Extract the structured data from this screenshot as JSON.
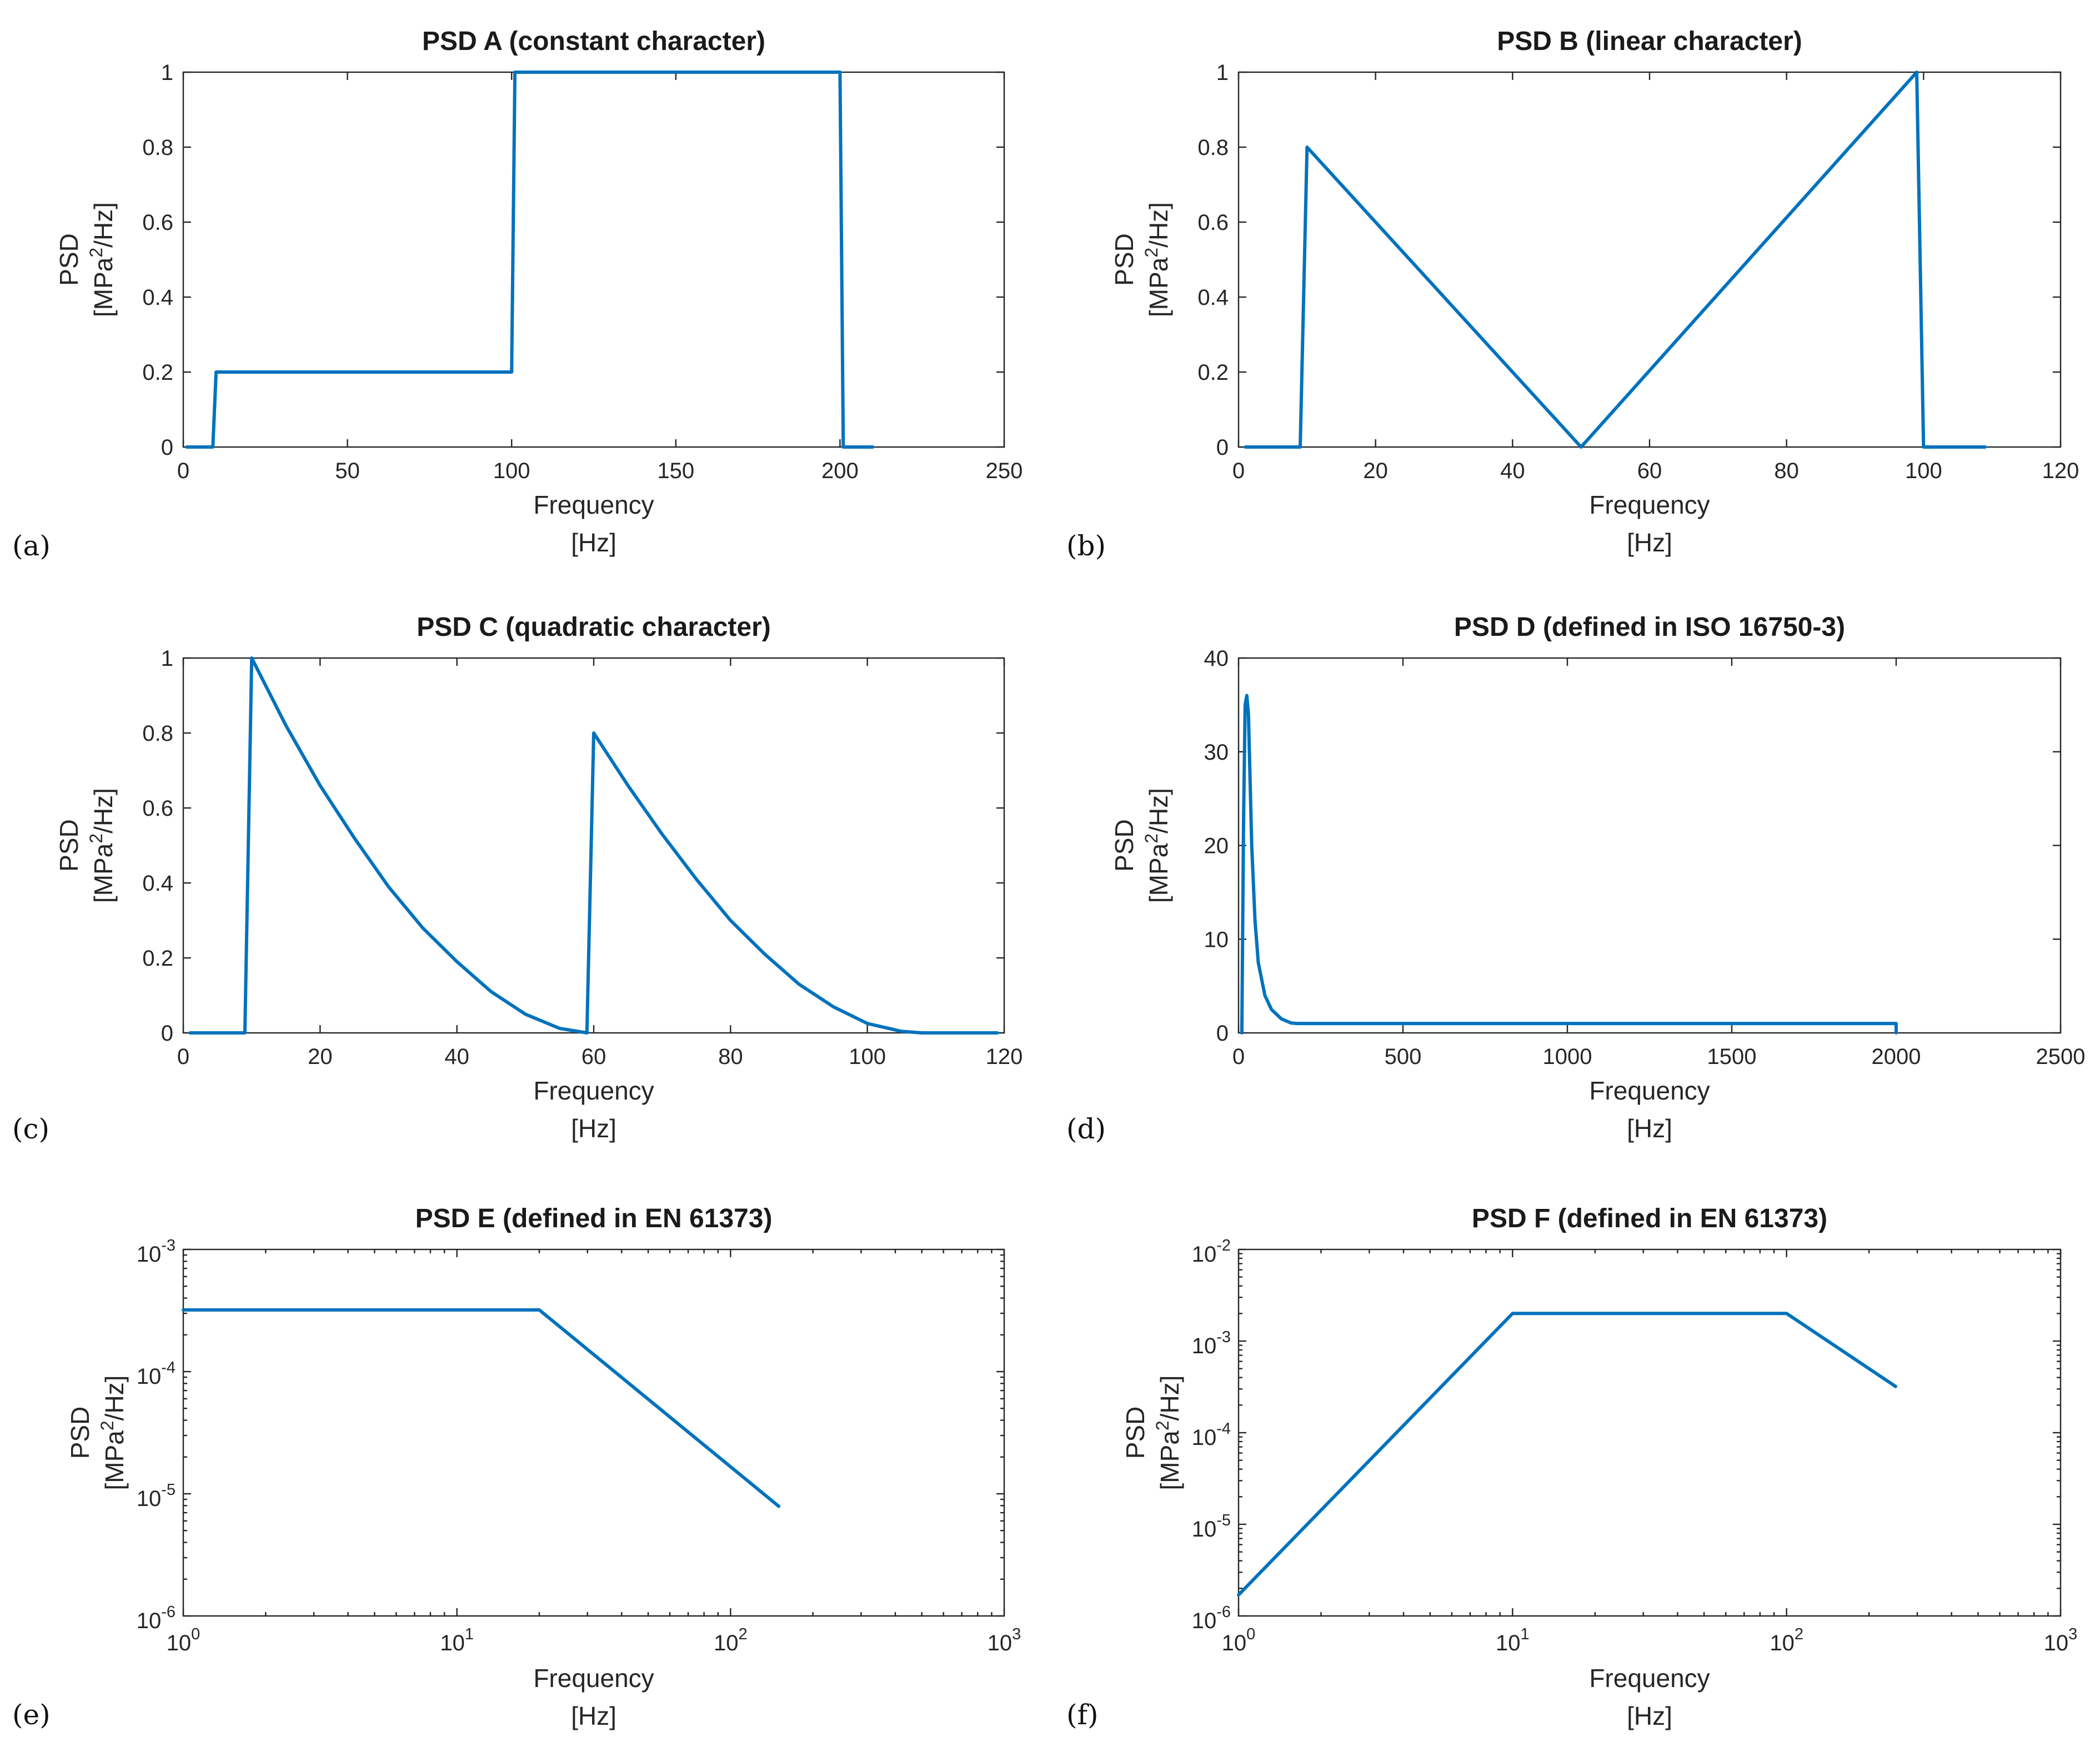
{
  "figure": {
    "line_color": "#0072bd",
    "frame_color": "#262626"
  },
  "chart_data": [
    {
      "id": "a",
      "panel_label": "(a)",
      "type": "line",
      "title": "PSD A (constant character)",
      "xlabel_1": "Frequency",
      "xlabel_2": "[Hz]",
      "ylabel_1": "PSD",
      "ylabel_2_pre": "[MPa",
      "ylabel_2_sup": "2",
      "ylabel_2_post": "/Hz]",
      "xscale": "linear",
      "yscale": "linear",
      "xlim": [
        0,
        250
      ],
      "ylim": [
        0,
        1
      ],
      "xticks": [
        0,
        50,
        100,
        150,
        200,
        250
      ],
      "xtick_labels": [
        "0",
        "50",
        "100",
        "150",
        "200",
        "250"
      ],
      "yticks": [
        0,
        0.2,
        0.4,
        0.6,
        0.8,
        1
      ],
      "ytick_labels": [
        "0",
        "0.2",
        "0.4",
        "0.6",
        "0.8",
        "1"
      ],
      "series": [
        {
          "name": "PSD A",
          "x": [
            1,
            9,
            10,
            100,
            101,
            200,
            201,
            210
          ],
          "y": [
            0,
            0,
            0.2,
            0.2,
            1,
            1,
            0,
            0
          ]
        }
      ]
    },
    {
      "id": "b",
      "panel_label": "(b)",
      "type": "line",
      "title": "PSD B (linear character)",
      "xlabel_1": "Frequency",
      "xlabel_2": "[Hz]",
      "ylabel_1": "PSD",
      "ylabel_2_pre": "[MPa",
      "ylabel_2_sup": "2",
      "ylabel_2_post": "/Hz]",
      "xscale": "linear",
      "yscale": "linear",
      "xlim": [
        0,
        120
      ],
      "ylim": [
        0,
        1
      ],
      "xticks": [
        0,
        20,
        40,
        60,
        80,
        100,
        120
      ],
      "xtick_labels": [
        "0",
        "20",
        "40",
        "60",
        "80",
        "100",
        "120"
      ],
      "yticks": [
        0,
        0.2,
        0.4,
        0.6,
        0.8,
        1
      ],
      "ytick_labels": [
        "0",
        "0.2",
        "0.4",
        "0.6",
        "0.8",
        "1"
      ],
      "series": [
        {
          "name": "PSD B",
          "x": [
            1,
            9,
            10,
            50,
            99,
            100,
            109
          ],
          "y": [
            0,
            0,
            0.8,
            0,
            1,
            0,
            0
          ]
        }
      ]
    },
    {
      "id": "c",
      "panel_label": "(c)",
      "type": "line",
      "title": "PSD C (quadratic character)",
      "xlabel_1": "Frequency",
      "xlabel_2": "[Hz]",
      "ylabel_1": "PSD",
      "ylabel_2_pre": "[MPa",
      "ylabel_2_sup": "2",
      "ylabel_2_post": "/Hz]",
      "xscale": "linear",
      "yscale": "linear",
      "xlim": [
        0,
        120
      ],
      "ylim": [
        0,
        1
      ],
      "xticks": [
        0,
        20,
        40,
        60,
        80,
        100,
        120
      ],
      "xtick_labels": [
        "0",
        "20",
        "40",
        "60",
        "80",
        "100",
        "120"
      ],
      "yticks": [
        0,
        0.2,
        0.4,
        0.6,
        0.8,
        1
      ],
      "ytick_labels": [
        "0",
        "0.2",
        "0.4",
        "0.6",
        "0.8",
        "1"
      ],
      "series": [
        {
          "name": "PSD C",
          "x": [
            1,
            9,
            10,
            15,
            20,
            25,
            30,
            35,
            40,
            45,
            50,
            55,
            59,
            60,
            65,
            70,
            75,
            80,
            85,
            90,
            95,
            100,
            105,
            108,
            119
          ],
          "y": [
            0,
            0,
            1,
            0.82,
            0.66,
            0.52,
            0.39,
            0.28,
            0.19,
            0.11,
            0.05,
            0.012,
            0,
            0.8,
            0.66,
            0.53,
            0.41,
            0.3,
            0.21,
            0.13,
            0.07,
            0.025,
            0.004,
            0,
            0
          ]
        }
      ]
    },
    {
      "id": "d",
      "panel_label": "(d)",
      "type": "line",
      "title": "PSD D (defined in ISO 16750-3)",
      "xlabel_1": "Frequency",
      "xlabel_2": "[Hz]",
      "ylabel_1": "PSD",
      "ylabel_2_pre": "[MPa",
      "ylabel_2_sup": "2",
      "ylabel_2_post": "/Hz]",
      "xscale": "linear",
      "yscale": "linear",
      "xlim": [
        0,
        2500
      ],
      "ylim": [
        0,
        40
      ],
      "xticks": [
        0,
        500,
        1000,
        1500,
        2000,
        2500
      ],
      "xtick_labels": [
        "0",
        "500",
        "1000",
        "1500",
        "2000",
        "2500"
      ],
      "yticks": [
        0,
        10,
        20,
        30,
        40
      ],
      "ytick_labels": [
        "0",
        "10",
        "20",
        "30",
        "40"
      ],
      "series": [
        {
          "name": "PSD D",
          "x": [
            10,
            15,
            20,
            25,
            30,
            40,
            50,
            60,
            80,
            100,
            130,
            160,
            180,
            1000,
            2000,
            2000
          ],
          "y": [
            0,
            22,
            35,
            36,
            34,
            20,
            12,
            7.5,
            4,
            2.5,
            1.5,
            1.05,
            1,
            1,
            1,
            0
          ]
        }
      ]
    },
    {
      "id": "e",
      "panel_label": "(e)",
      "type": "line",
      "title": "PSD E (defined in EN 61373)",
      "xlabel_1": "Frequency",
      "xlabel_2": "[Hz]",
      "ylabel_1": "PSD",
      "ylabel_2_pre": "[MPa",
      "ylabel_2_sup": "2",
      "ylabel_2_post": "/Hz]",
      "xscale": "log",
      "yscale": "log",
      "xlim": [
        1,
        1000
      ],
      "ylim": [
        1e-06,
        0.001
      ],
      "xticks": [
        1,
        10,
        100,
        1000
      ],
      "xtick_base": [
        "10",
        "10",
        "10",
        "10"
      ],
      "xtick_exp": [
        "0",
        "1",
        "2",
        "3"
      ],
      "yticks": [
        1e-06,
        1e-05,
        0.0001,
        0.001
      ],
      "ytick_base": [
        "10",
        "10",
        "10",
        "10"
      ],
      "ytick_exp": [
        "-6",
        "-5",
        "-4",
        "-3"
      ],
      "series": [
        {
          "name": "PSD E",
          "x": [
            1,
            20,
            150
          ],
          "y": [
            0.00032,
            0.00032,
            7.9e-06
          ]
        }
      ]
    },
    {
      "id": "f",
      "panel_label": "(f)",
      "type": "line",
      "title": "PSD F (defined in EN 61373)",
      "xlabel_1": "Frequency",
      "xlabel_2": "[Hz]",
      "ylabel_1": "PSD",
      "ylabel_2_pre": "[MPa",
      "ylabel_2_sup": "2",
      "ylabel_2_post": "/Hz]",
      "xscale": "log",
      "yscale": "log",
      "xlim": [
        1,
        1000
      ],
      "ylim": [
        1e-06,
        0.01
      ],
      "xticks": [
        1,
        10,
        100,
        1000
      ],
      "xtick_base": [
        "10",
        "10",
        "10",
        "10"
      ],
      "xtick_exp": [
        "0",
        "1",
        "2",
        "3"
      ],
      "yticks": [
        1e-06,
        1e-05,
        0.0001,
        0.001,
        0.01
      ],
      "ytick_base": [
        "10",
        "10",
        "10",
        "10",
        "10"
      ],
      "ytick_exp": [
        "-6",
        "-5",
        "-4",
        "-3",
        "-2"
      ],
      "series": [
        {
          "name": "PSD F",
          "x": [
            1,
            10,
            100,
            250
          ],
          "y": [
            1.7e-06,
            0.002,
            0.002,
            0.00032
          ]
        }
      ]
    }
  ]
}
